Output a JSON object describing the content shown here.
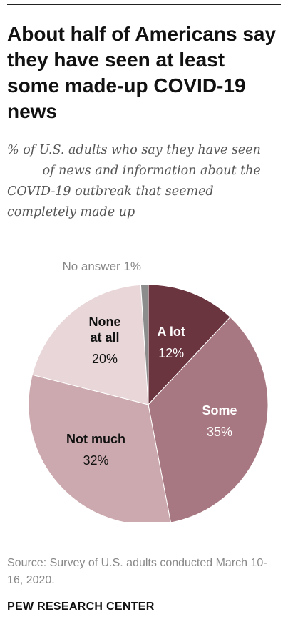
{
  "header": {
    "title": "About half of Americans say they have seen at least some made-up COVID-19 news",
    "subtitle_before": "% of U.S. adults who say they have seen",
    "subtitle_after": "of  news and information about the COVID-19 outbreak that seemed completely made up"
  },
  "chart_data": {
    "type": "pie",
    "title": "About half of Americans say they have seen at least some made-up COVID-19 news",
    "slices": [
      {
        "label": "A lot",
        "value": 12,
        "value_label": "12%",
        "color": "#6b3540",
        "label_color": "#ffffff"
      },
      {
        "label": "Some",
        "value": 35,
        "value_label": "35%",
        "color": "#a87882",
        "label_color": "#ffffff"
      },
      {
        "label": "Not much",
        "value": 32,
        "value_label": "32%",
        "color": "#cba9ae",
        "label_color": "#111111"
      },
      {
        "label": "None at all",
        "value": 20,
        "value_label": "20%",
        "color": "#e8d6d8",
        "label_color": "#111111"
      },
      {
        "label": "No answer",
        "value": 1,
        "value_label": "1%",
        "color": "#8c8c8c",
        "label_color": "#888888"
      }
    ],
    "start": "12 o'clock",
    "direction": "clockwise",
    "legend": "none"
  },
  "footer": {
    "source": "Source: Survey of U.S. adults conducted March 10-16, 2020.",
    "brand": "PEW RESEARCH CENTER"
  }
}
